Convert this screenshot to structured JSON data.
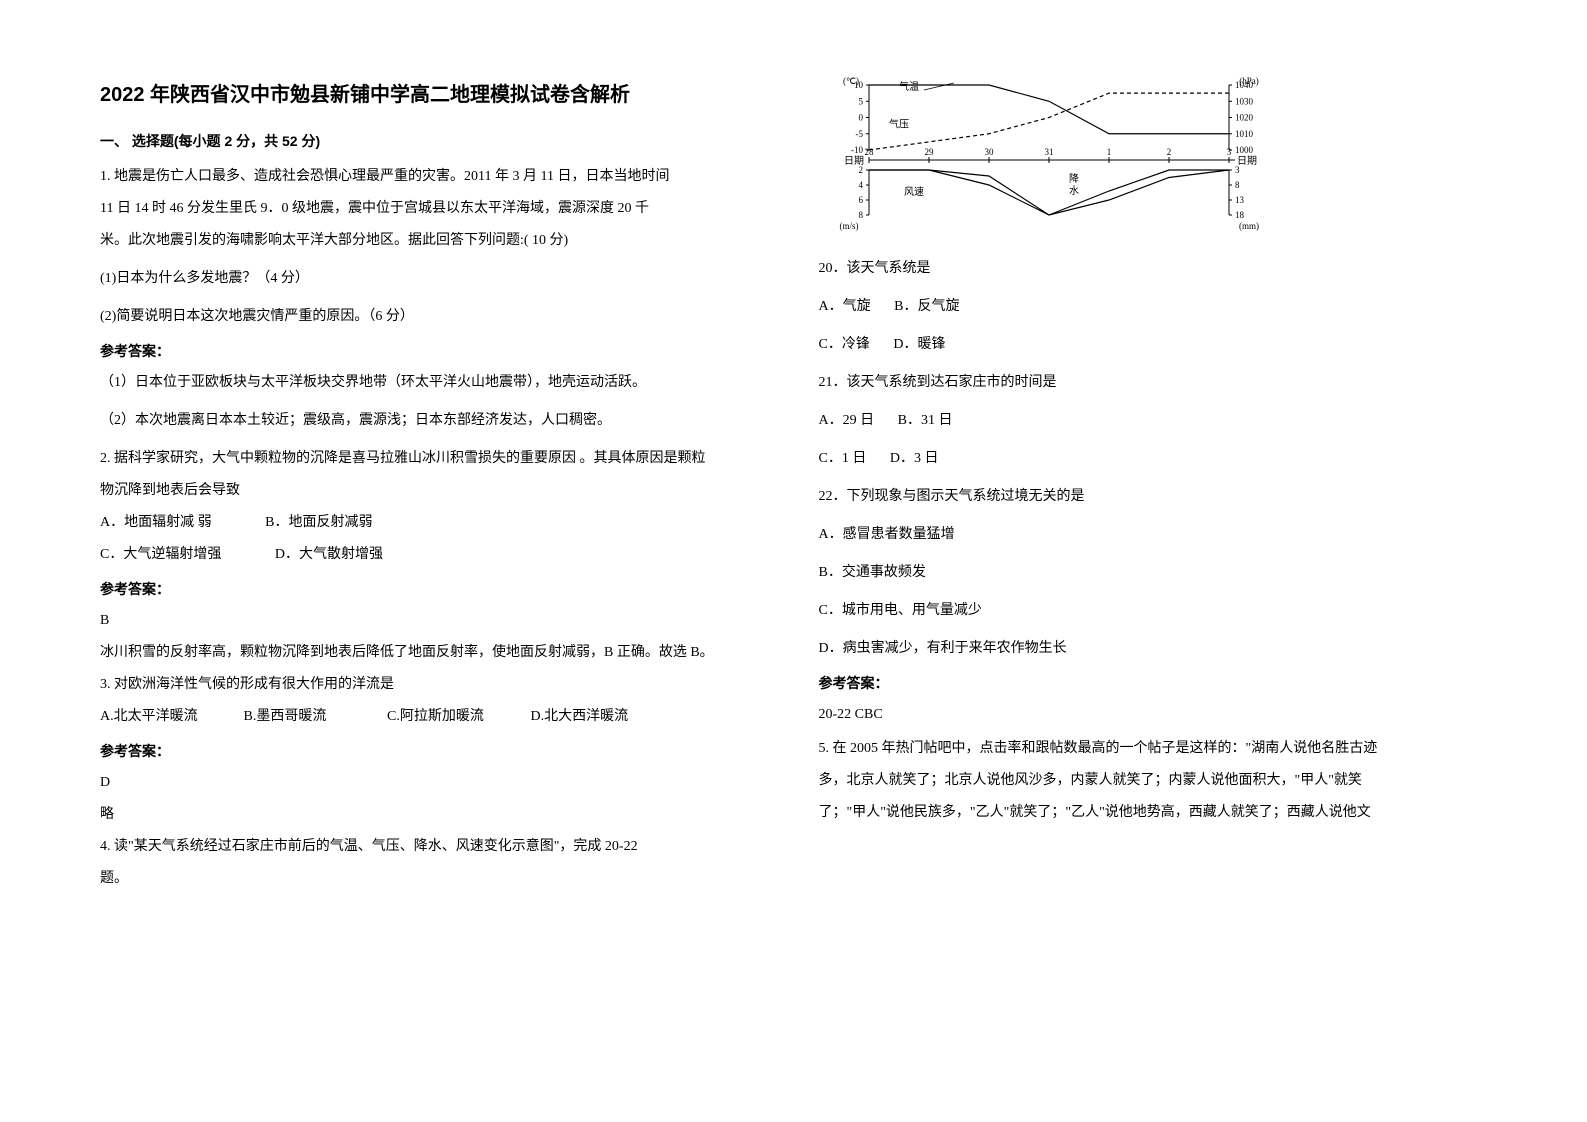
{
  "title": "2022 年陕西省汉中市勉县新铺中学高二地理模拟试卷含解析",
  "section1_header": "一、 选择题(每小题 2 分，共 52 分)",
  "q1": {
    "stem1": "1. 地震是伤亡人口最多、造成社会恐惧心理最严重的灾害。2011 年 3 月 11 日，日本当地时间",
    "stem2": "11 日 14 时 46 分发生里氏 9．0 级地震，震中位于宫城县以东太平洋海域，震源深度 20 千",
    "stem3": "米。此次地震引发的海啸影响太平洋大部分地区。据此回答下列问题:( 10 分)",
    "sub1": "(1)日本为什么多发地震？（4 分）",
    "sub2": "(2)简要说明日本这次地震灾情严重的原因。（6 分）",
    "ans1": "（1）日本位于亚欧板块与太平洋板块交界地带（环太平洋火山地震带），地壳运动活跃。",
    "ans2": "（2）本次地震离日本本土较近；震级高，震源浅；日本东部经济发达，人口稠密。"
  },
  "q2": {
    "stem1": "2. 据科学家研究，大气中颗粒物的沉降是喜马拉雅山冰川积雪损失的重要原因 。其具体原因是颗粒",
    "stem2": "物沉降到地表后会导致",
    "optA": "A．地面辐射减 弱",
    "optB": "B．地面反射减弱",
    "optC": "C．大气逆辐射增强",
    "optD": "D．大气散射增强",
    "ans": "B",
    "expl": "冰川积雪的反射率高，颗粒物沉降到地表后降低了地面反射率，使地面反射减弱，B 正确。故选 B。"
  },
  "q3": {
    "stem": "3. 对欧洲海洋性气候的形成有很大作用的洋流是",
    "optA": "A.北太平洋暖流",
    "optB": "B.墨西哥暖流",
    "optC": "C.阿拉斯加暖流",
    "optD": "D.北大西洋暖流",
    "ans": "D",
    "expl": "略"
  },
  "q4": {
    "stem1": "4. 读\"某天气系统经过石家庄市前后的气温、气压、降水、风速变化示意图\"，完成 20-22",
    "stem2": "题。"
  },
  "chart": {
    "temp_label": "气温",
    "pressure_label": "气压",
    "wind_label": "风速",
    "precip_label": "降水",
    "left_axes": {
      "temp_unit": "(℃)",
      "temp_ticks": [
        10,
        5,
        0,
        -5,
        -10
      ],
      "date_label_l": "日期",
      "wind_unit": "(m/s)",
      "wind_ticks": [
        2,
        4,
        6,
        8
      ]
    },
    "right_axes": {
      "pressure_unit": "(hPa)",
      "pressure_ticks": [
        1040,
        1030,
        1020,
        1010,
        1000
      ],
      "date_label_r": "日期",
      "precip_unit": "(mm)",
      "precip_ticks": [
        3,
        8,
        13,
        18
      ]
    },
    "dates": [
      "28",
      "29",
      "30",
      "31",
      "1",
      "2",
      "3"
    ],
    "temp_values": [
      10,
      10,
      10,
      5,
      -5,
      -5,
      -5
    ],
    "pressure_values": [
      1000,
      1005,
      1010,
      1020,
      1035,
      1035,
      1035
    ],
    "wind_values": [
      2,
      2,
      4,
      8,
      6,
      3,
      2
    ],
    "precip_values": [
      3,
      3,
      5,
      18,
      10,
      3,
      3
    ],
    "colors": {
      "axis": "#000000",
      "line": "#000000",
      "background": "#ffffff"
    },
    "line_styles": {
      "temp": "solid",
      "pressure": "dashed",
      "wind": "solid",
      "precip": "solid"
    }
  },
  "q20": {
    "stem": "20．该天气系统是",
    "optA": "A．气旋",
    "optB": "B．反气旋",
    "optC": "C．冷锋",
    "optD": "D．暖锋"
  },
  "q21": {
    "stem": "21．该天气系统到达石家庄市的时间是",
    "optA": "A．29 日",
    "optB": "B．31 日",
    "optC": "C．1 日",
    "optD": "D．3 日"
  },
  "q22": {
    "stem": "22．下列现象与图示天气系统过境无关的是",
    "optA": "A．感冒患者数量猛增",
    "optB": "B．交通事故频发",
    "optC": "C．城市用电、用气量减少",
    "optD": "D．病虫害减少，有利于来年农作物生长"
  },
  "ans20_22": "20-22 CBC",
  "q5": {
    "stem1": "5. 在 2005 年热门帖吧中，点击率和跟帖数最高的一个帖子是这样的：\"湖南人说他名胜古迹",
    "stem2": "多，北京人就笑了；北京人说他风沙多，内蒙人就笑了；内蒙人说他面积大，\"甲人\"就笑",
    "stem3": "了；\"甲人\"说他民族多，\"乙人\"就笑了；\"乙人\"说他地势高，西藏人就笑了；西藏人说他文"
  },
  "answer_label": "参考答案："
}
